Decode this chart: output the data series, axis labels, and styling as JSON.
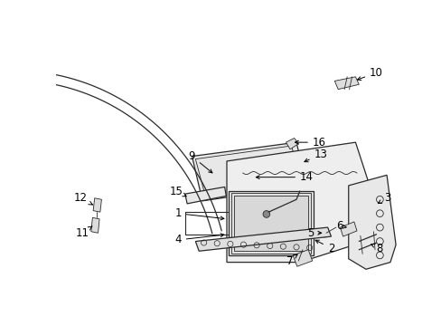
{
  "background_color": "#ffffff",
  "line_color": "#2a2a2a",
  "text_color": "#000000",
  "font_size": 8.5,
  "label_positions": {
    "1": {
      "text": [
        0.295,
        0.5
      ],
      "arrow": [
        0.34,
        0.49
      ]
    },
    "2": {
      "text": [
        0.43,
        0.87
      ],
      "arrow": [
        0.4,
        0.845
      ]
    },
    "3": {
      "text": [
        0.94,
        0.49
      ],
      "arrow": [
        0.9,
        0.47
      ]
    },
    "4": {
      "text": [
        0.295,
        0.565
      ],
      "arrow": [
        0.34,
        0.563
      ]
    },
    "5": {
      "text": [
        0.74,
        0.59
      ],
      "arrow": [
        0.718,
        0.565
      ]
    },
    "6": {
      "text": [
        0.79,
        0.565
      ],
      "arrow": [
        0.81,
        0.545
      ]
    },
    "7": {
      "text": [
        0.67,
        0.79
      ],
      "arrow": [
        0.648,
        0.76
      ]
    },
    "8": {
      "text": [
        0.885,
        0.75
      ],
      "arrow": [
        0.86,
        0.718
      ]
    },
    "9": {
      "text": [
        0.205,
        0.27
      ],
      "arrow": [
        0.245,
        0.295
      ]
    },
    "10": {
      "text": [
        0.565,
        0.065
      ],
      "arrow": [
        0.498,
        0.09
      ]
    },
    "11": {
      "text": [
        0.082,
        0.535
      ],
      "arrow": [
        0.102,
        0.51
      ]
    },
    "12": {
      "text": [
        0.075,
        0.42
      ],
      "arrow": [
        0.1,
        0.437
      ]
    },
    "13": {
      "text": [
        0.575,
        0.27
      ],
      "arrow": [
        0.545,
        0.29
      ]
    },
    "14": {
      "text": [
        0.49,
        0.3
      ],
      "arrow": [
        0.46,
        0.32
      ]
    },
    "15": {
      "text": [
        0.295,
        0.32
      ],
      "arrow": [
        0.322,
        0.338
      ]
    },
    "16": {
      "text": [
        0.545,
        0.185
      ],
      "arrow": [
        0.508,
        0.205
      ]
    }
  }
}
